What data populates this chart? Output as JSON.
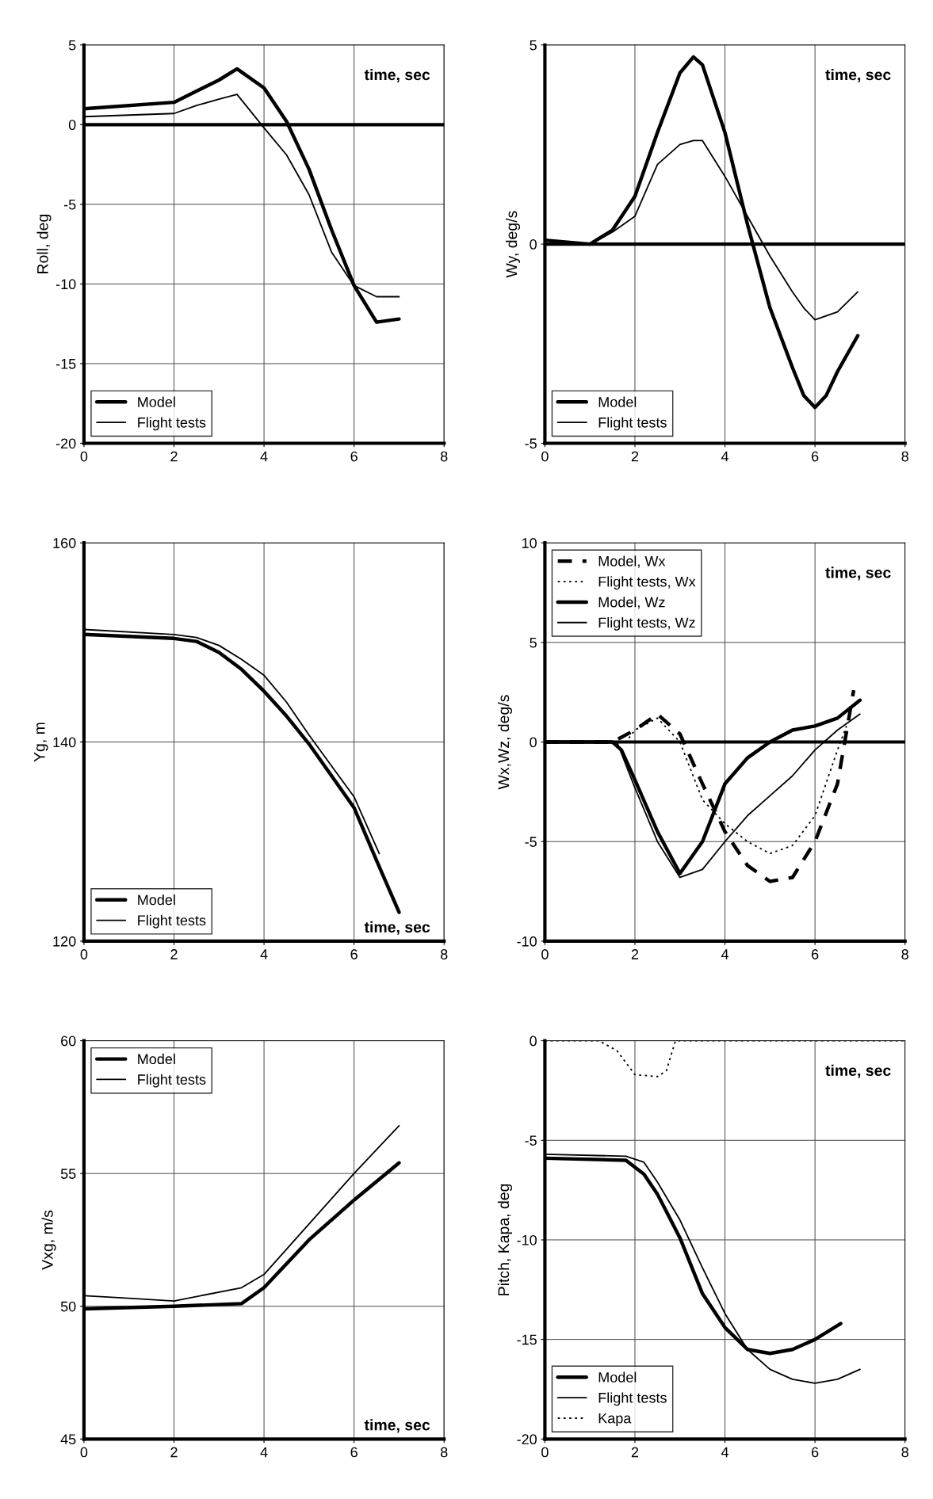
{
  "chart_data": [
    {
      "type": "line",
      "ylabel": "Roll, deg",
      "xlabel": "time, sec",
      "xlim": [
        0,
        8
      ],
      "xticks": [
        0,
        2,
        4,
        6,
        8
      ],
      "ylim": [
        -20,
        5
      ],
      "yticks": [
        -20,
        -15,
        -10,
        -5,
        0,
        5
      ],
      "grid": true,
      "legend": "bottom left",
      "ref_lines": [
        {
          "axis": "y",
          "value": 0
        }
      ],
      "x": [
        0,
        2,
        2.5,
        3,
        3.4,
        4,
        4.5,
        5,
        5.5,
        6,
        6.5,
        7
      ],
      "series": [
        {
          "name": "Model",
          "color": "#000000",
          "line_style": "solid",
          "values": [
            1.0,
            1.4,
            2.1,
            2.8,
            3.5,
            2.3,
            0.2,
            -2.8,
            -6.6,
            -10.1,
            -12.4,
            -12.2
          ]
        },
        {
          "name": "Flight tests",
          "color": "#000000",
          "line_style": "solid",
          "values": [
            0.5,
            0.7,
            1.2,
            1.6,
            1.9,
            -0.2,
            -1.9,
            -4.4,
            -8.0,
            -10.1,
            -10.8,
            -10.8
          ]
        }
      ]
    },
    {
      "type": "line",
      "ylabel": "Wy, deg/s",
      "xlabel": "time, sec",
      "xlim": [
        0,
        8
      ],
      "xticks": [
        0,
        2,
        4,
        6,
        8
      ],
      "ylim": [
        -5,
        5
      ],
      "yticks": [
        -5,
        0,
        5
      ],
      "grid": true,
      "legend": "bottom left",
      "x": [
        0,
        1,
        1.5,
        2,
        2.5,
        3,
        3.3,
        3.5,
        4,
        4.5,
        5,
        5.5,
        5.75,
        6,
        6.25,
        6.5,
        6.95
      ],
      "ref_lines": [
        {
          "axis": "y",
          "value": 0
        }
      ],
      "series": [
        {
          "name": "Model",
          "color": "#000000",
          "line_style": "solid",
          "values": [
            0.1,
            0,
            0.35,
            1.2,
            2.8,
            4.3,
            4.7,
            4.5,
            2.8,
            0.5,
            -1.6,
            -3.1,
            -3.8,
            -4.1,
            -3.8,
            -3.2,
            -2.3
          ]
        },
        {
          "name": "Flight tests",
          "color": "#000000",
          "line_style": "solid",
          "values": [
            0,
            0,
            0.3,
            0.7,
            2.0,
            2.5,
            2.6,
            2.6,
            1.7,
            0.7,
            -0.3,
            -1.2,
            -1.6,
            -1.9,
            -1.8,
            -1.7,
            -1.2
          ]
        }
      ]
    },
    {
      "type": "line",
      "ylabel": "Yg, m",
      "xlabel": "time, sec",
      "xlim": [
        0,
        8
      ],
      "xticks": [
        0,
        2,
        4,
        6,
        8
      ],
      "ylim": [
        120,
        160
      ],
      "yticks": [
        120,
        140,
        160
      ],
      "grid": true,
      "legend": "bottom left",
      "series": [
        {
          "name": "Model",
          "color": "#000000",
          "line_style": "solid",
          "x": [
            0,
            2,
            2.5,
            3,
            3.5,
            4,
            4.5,
            5,
            5.5,
            6,
            6.5,
            7
          ],
          "values": [
            150.8,
            150.4,
            150.1,
            149.0,
            147.3,
            145.1,
            142.6,
            139.8,
            136.6,
            133.4,
            128.1,
            122.9
          ]
        },
        {
          "name": "Flight tests",
          "color": "#000000",
          "line_style": "solid",
          "x": [
            0,
            2,
            2.5,
            3,
            3.5,
            4,
            4.5,
            5,
            5.5,
            6,
            6.56
          ],
          "values": [
            151.3,
            150.8,
            150.5,
            149.7,
            148.3,
            146.7,
            144.0,
            140.7,
            137.6,
            134.5,
            128.8
          ]
        }
      ]
    },
    {
      "type": "line",
      "ylabel": "Wx,Wz, deg/s",
      "xlabel": "time, sec",
      "xlim": [
        0,
        8
      ],
      "xticks": [
        0,
        2,
        4,
        6,
        8
      ],
      "ylim": [
        -10,
        10
      ],
      "yticks": [
        -10,
        -5,
        0,
        5,
        10
      ],
      "grid": true,
      "legend": "top left",
      "ref_lines": [
        {
          "axis": "y",
          "value": 0
        }
      ],
      "series": [
        {
          "name": "Model, Wx",
          "color": "#000000",
          "line_style": "dashed",
          "x": [
            0,
            1.5,
            2,
            2.5,
            3,
            3.5,
            4,
            4.5,
            5,
            5.5,
            6,
            6.5,
            6.86
          ],
          "values": [
            0,
            0,
            0.6,
            1.4,
            0.4,
            -2.1,
            -4.5,
            -6.2,
            -7.0,
            -6.8,
            -5.0,
            -2.1,
            2.6
          ]
        },
        {
          "name": "Flight tests, Wx",
          "color": "#000000",
          "line_style": "dotted",
          "x": [
            0,
            1.8,
            2,
            2.5,
            3,
            3.5,
            4,
            4.5,
            5,
            5.5,
            6,
            6.5,
            6.7
          ],
          "values": [
            0,
            0,
            0.6,
            1.2,
            0,
            -2.9,
            -4.1,
            -5.0,
            -5.6,
            -5.2,
            -3.7,
            -0.4,
            0.8
          ]
        },
        {
          "name": "Model, Wz",
          "color": "#000000",
          "line_style": "solid",
          "x": [
            0,
            1.5,
            1.7,
            2,
            2.5,
            3,
            3.5,
            4,
            4.5,
            5,
            5.5,
            6,
            6.5,
            7
          ],
          "values": [
            0,
            0,
            -0.4,
            -1.9,
            -4.5,
            -6.6,
            -5.0,
            -2.1,
            -0.8,
            0,
            0.6,
            0.8,
            1.2,
            2.1
          ]
        },
        {
          "name": "Flight tests, Wz",
          "color": "#000000",
          "line_style": "solid",
          "x": [
            0,
            1.6,
            2,
            2.5,
            3,
            3.5,
            4,
            4.5,
            5,
            5.5,
            6,
            6.5,
            7
          ],
          "values": [
            0,
            0,
            -2.3,
            -5.0,
            -6.8,
            -6.4,
            -5.0,
            -3.7,
            -2.7,
            -1.7,
            -0.4,
            0.6,
            1.4
          ]
        }
      ]
    },
    {
      "type": "line",
      "ylabel": "Vxg, m/s",
      "xlabel": "time, sec",
      "xlim": [
        0,
        8
      ],
      "xticks": [
        0,
        2,
        4,
        6,
        8
      ],
      "ylim": [
        45,
        60
      ],
      "yticks": [
        45,
        50,
        55,
        60
      ],
      "grid": true,
      "legend": "top left",
      "series": [
        {
          "name": "Model",
          "color": "#000000",
          "line_style": "solid",
          "x": [
            0,
            2,
            3.5,
            4,
            5,
            6,
            7
          ],
          "values": [
            49.9,
            50.0,
            50.1,
            50.7,
            52.5,
            54.0,
            55.4
          ]
        },
        {
          "name": "Flight tests",
          "color": "#000000",
          "line_style": "solid",
          "x": [
            0,
            1,
            2,
            3.5,
            4,
            5,
            6,
            7
          ],
          "values": [
            50.4,
            50.3,
            50.2,
            50.7,
            51.2,
            53.1,
            55.0,
            56.8
          ]
        }
      ]
    },
    {
      "type": "line",
      "ylabel": "Pitch, Kapa, deg",
      "xlabel": "time, sec",
      "xlim": [
        0,
        8
      ],
      "xticks": [
        0,
        2,
        4,
        6,
        8
      ],
      "ylim": [
        -20,
        0
      ],
      "yticks": [
        -20,
        -15,
        -10,
        -5,
        0
      ],
      "grid": true,
      "legend": "bottom left",
      "series": [
        {
          "name": "Model",
          "color": "#000000",
          "line_style": "solid",
          "x": [
            0,
            1.8,
            2.2,
            2.5,
            3,
            3.5,
            4,
            4.5,
            5,
            5.5,
            6,
            6.57
          ],
          "values": [
            -5.9,
            -6.0,
            -6.7,
            -7.7,
            -9.9,
            -12.7,
            -14.4,
            -15.5,
            -15.7,
            -15.5,
            -15.0,
            -14.2
          ]
        },
        {
          "name": "Flight tests",
          "color": "#000000",
          "line_style": "solid",
          "x": [
            0,
            1.8,
            2.2,
            2.5,
            3,
            3.5,
            4,
            4.5,
            5,
            5.5,
            6,
            6.5,
            7
          ],
          "values": [
            -5.7,
            -5.8,
            -6.1,
            -7.1,
            -9.0,
            -11.4,
            -13.7,
            -15.5,
            -16.5,
            -17.0,
            -17.2,
            -17.0,
            -16.5
          ]
        },
        {
          "name": "Kapa",
          "color": "#000000",
          "line_style": "dotted",
          "x": [
            0,
            1.2,
            1.6,
            2.0,
            2.5,
            2.7,
            2.9,
            8
          ],
          "values": [
            0,
            0,
            -0.5,
            -1.7,
            -1.8,
            -1.5,
            0,
            0
          ]
        }
      ]
    }
  ]
}
